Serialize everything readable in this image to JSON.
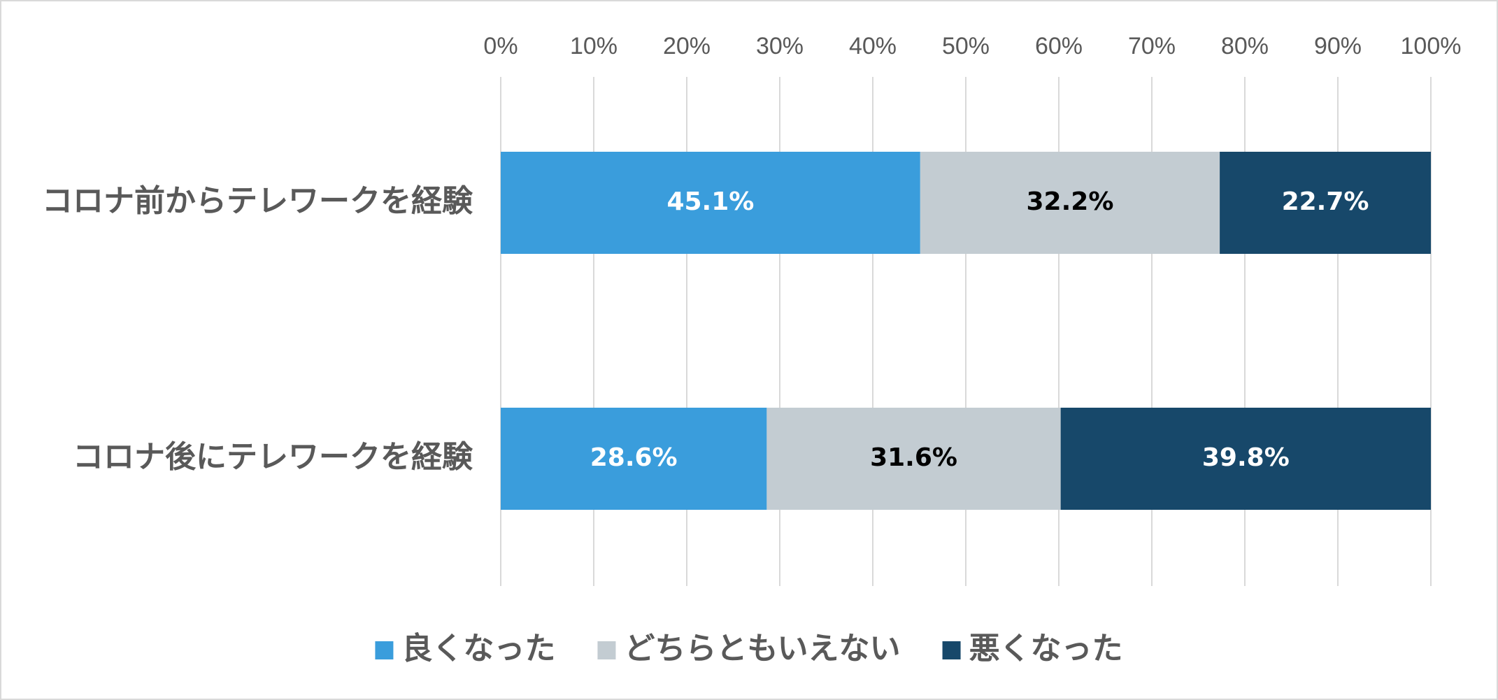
{
  "chart_data": {
    "type": "bar",
    "orientation": "horizontal",
    "stacked": true,
    "categories": [
      "コロナ前からテレワークを経験",
      "コロナ後にテレワークを経験"
    ],
    "series": [
      {
        "name": "良くなった",
        "values": [
          45.1,
          28.6
        ],
        "labels": [
          "45.1%",
          "28.6%"
        ],
        "color": "#3a9ddc",
        "label_color": "#ffffff"
      },
      {
        "name": "どちらともいえない",
        "values": [
          32.2,
          31.6
        ],
        "labels": [
          "32.2%",
          "31.6%"
        ],
        "color": "#c3ccd2",
        "label_color": "#000000"
      },
      {
        "name": "悪くなった",
        "values": [
          22.7,
          39.8
        ],
        "labels": [
          "22.7%",
          "39.8%"
        ],
        "color": "#17486a",
        "label_color": "#ffffff"
      }
    ],
    "xaxis": {
      "position": "top",
      "range": [
        0,
        100
      ],
      "ticks": [
        "0%",
        "10%",
        "20%",
        "30%",
        "40%",
        "50%",
        "60%",
        "70%",
        "80%",
        "90%",
        "100%"
      ]
    },
    "grid": true,
    "gridline_color": "#d9d9d9",
    "legend_position": "bottom"
  }
}
